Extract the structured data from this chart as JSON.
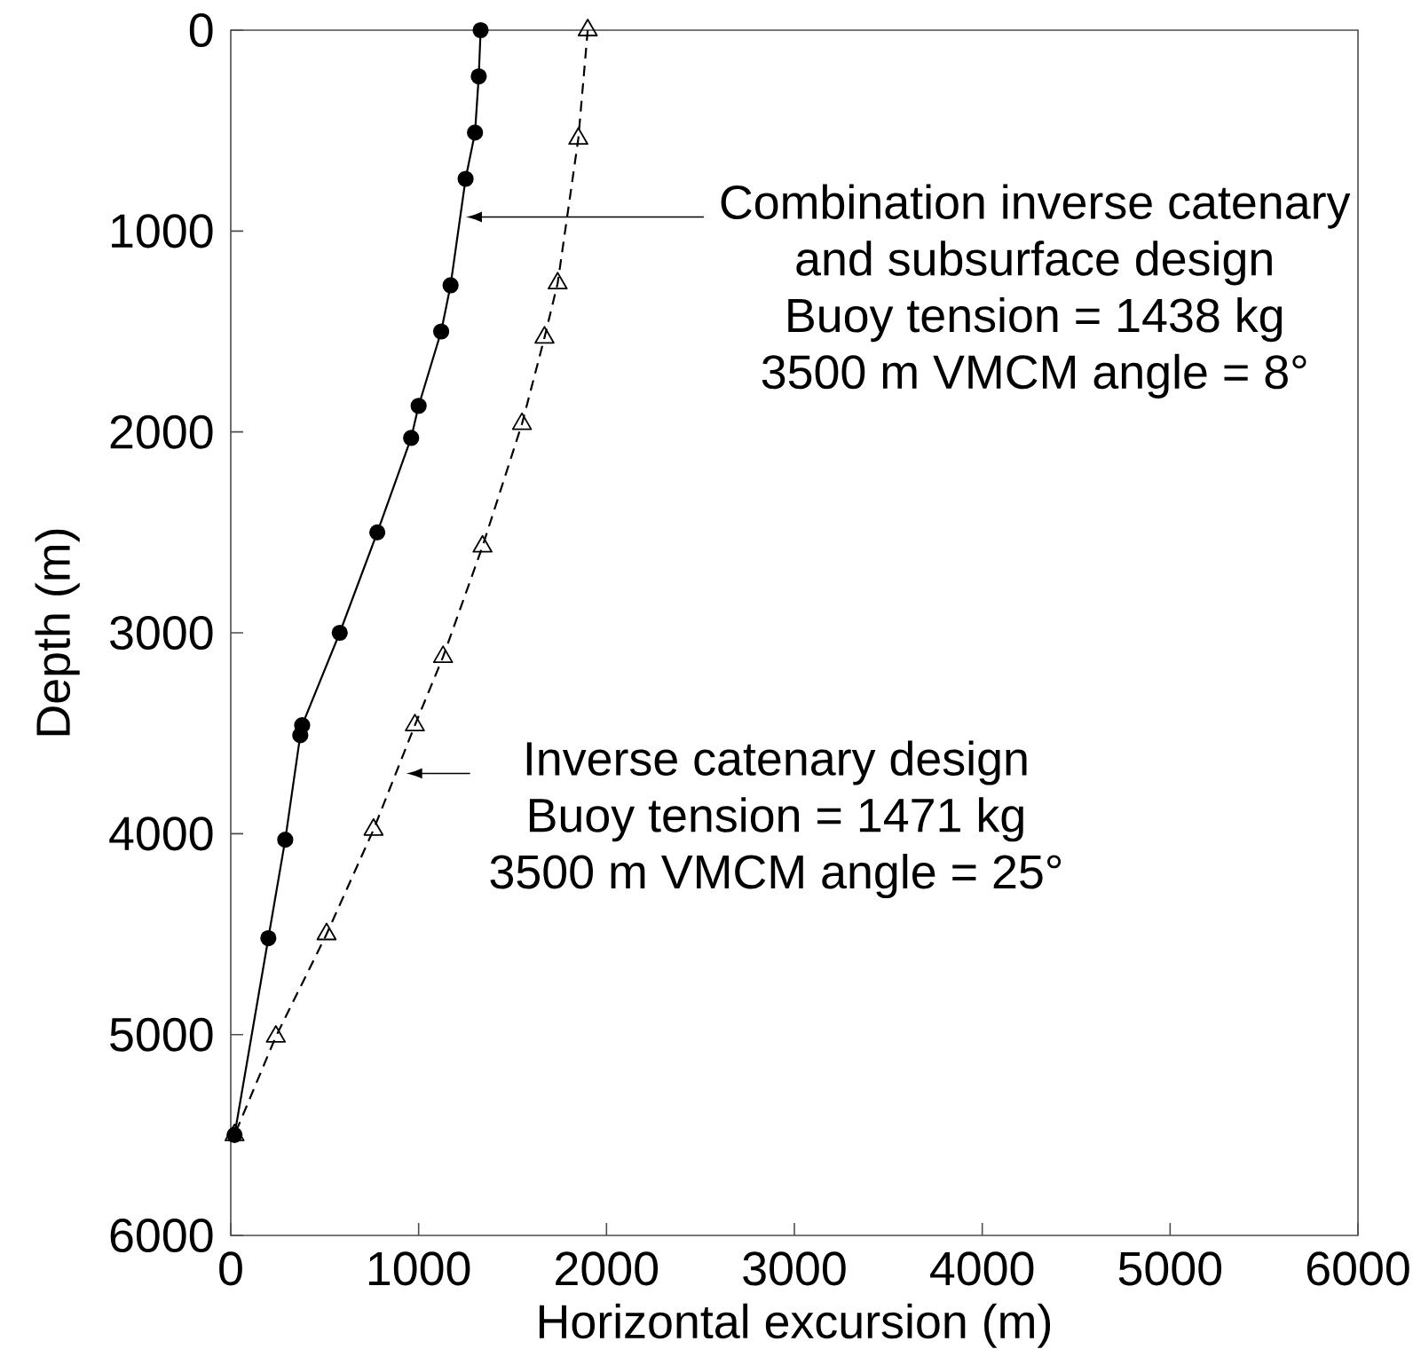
{
  "chart_data": {
    "type": "line",
    "xlabel": "Horizontal excursion (m)",
    "ylabel": "Depth (m)",
    "xlim": [
      0,
      6000
    ],
    "ylim": [
      6000,
      0
    ],
    "xticks": [
      0,
      1000,
      2000,
      3000,
      4000,
      5000,
      6000
    ],
    "yticks": [
      0,
      1000,
      2000,
      3000,
      4000,
      5000,
      6000
    ],
    "grid": false,
    "series": [
      {
        "color": "#000000",
        "marker": "circle",
        "line_style": "solid",
        "x": [
          1330,
          1320,
          1300,
          1250,
          1170,
          1120,
          1000,
          960,
          780,
          580,
          380,
          370,
          290,
          200,
          20
        ],
        "values": [
          0,
          230,
          510,
          740,
          1270,
          1500,
          1870,
          2030,
          2500,
          3000,
          3460,
          3510,
          4030,
          4520,
          5500
        ]
      },
      {
        "color": "#000000",
        "marker": "triangle",
        "line_style": "dashed",
        "x": [
          1900,
          1850,
          1740,
          1670,
          1550,
          1340,
          1130,
          980,
          760,
          510,
          240,
          20
        ],
        "values": [
          0,
          540,
          1260,
          1530,
          1960,
          2570,
          3120,
          3460,
          3980,
          4500,
          5010,
          5500
        ]
      }
    ],
    "annotations": [
      "Combination inverse catenary and subsurface design",
      "Buoy tension = 1438 kg",
      "3500 m VMCM angle = 8°",
      {
        "text": "Inverse catenary design",
        "x": 930,
        "y": 3700
      },
      "Buoy tension = 1471 kg",
      "3500 m VMCM angle = 25°"
    ]
  }
}
